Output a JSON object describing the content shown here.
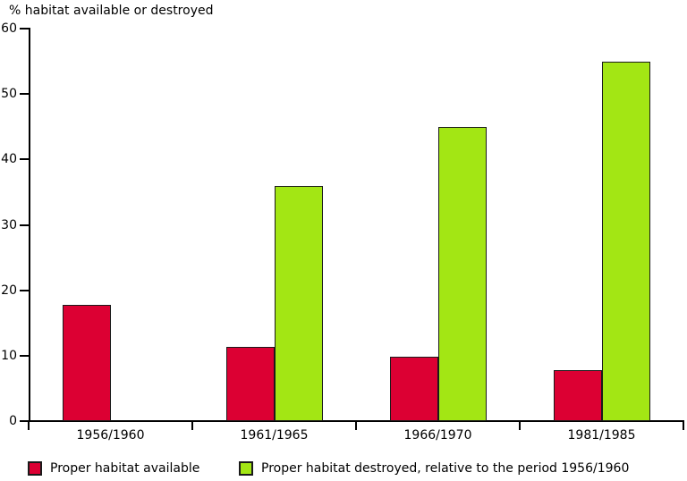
{
  "chart_data": {
    "type": "bar",
    "title": "",
    "ylabel": "% habitat available or destroyed",
    "xlabel": "",
    "categories": [
      "1956/1960",
      "1961/1965",
      "1966/1970",
      "1981/1985"
    ],
    "series": [
      {
        "name": "Proper habitat available",
        "key": "available",
        "color": "#DC0033",
        "values": [
          17.7,
          11.3,
          9.8,
          7.8
        ]
      },
      {
        "name": "Proper habitat destroyed, relative to the period 1956/1960",
        "key": "destroyed",
        "color": "#A3E614",
        "values": [
          null,
          36,
          45,
          55
        ]
      }
    ],
    "ylim": [
      0,
      60
    ],
    "y_ticks": [
      0,
      10,
      20,
      30,
      40,
      50,
      60
    ],
    "grid": false,
    "legend_position": "bottom",
    "axis_color": "#000000",
    "bar_outline_color": "#1A1A1A",
    "text_color": "#000000",
    "background_color": "#FFFFFF"
  }
}
